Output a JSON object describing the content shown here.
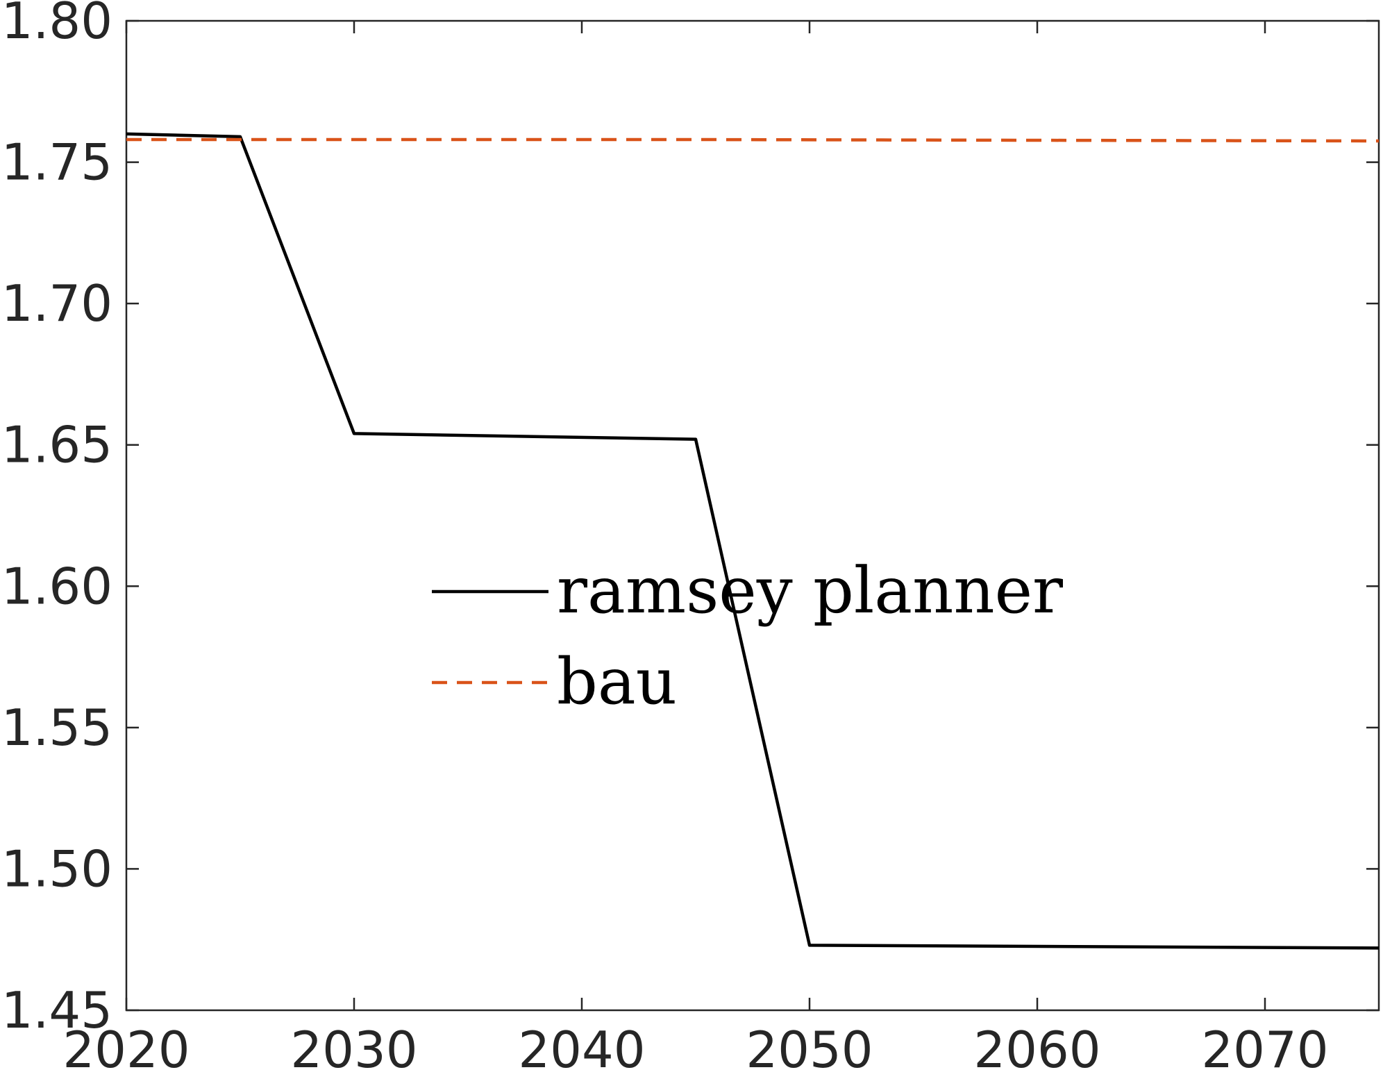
{
  "chart_data": {
    "type": "line",
    "title": "",
    "xlabel": "",
    "ylabel": "",
    "xlim": [
      2020,
      2075
    ],
    "ylim": [
      1.45,
      1.8
    ],
    "xticks": [
      "2020",
      "2030",
      "2040",
      "2050",
      "2060",
      "2070"
    ],
    "yticks": [
      "1.45",
      "1.50",
      "1.55",
      "1.60",
      "1.65",
      "1.70",
      "1.75",
      "1.80"
    ],
    "grid": false,
    "legend_position": "center",
    "series": [
      {
        "name": "ramsey planner",
        "color": "#000000",
        "style": "solid",
        "x": [
          2020,
          2025,
          2030,
          2045,
          2050,
          2075
        ],
        "y": [
          1.76,
          1.759,
          1.654,
          1.652,
          1.473,
          1.472
        ]
      },
      {
        "name": "bau",
        "color": "#D95319",
        "style": "dashed",
        "x": [
          2020,
          2045,
          2075
        ],
        "y": [
          1.758,
          1.758,
          1.7575
        ]
      }
    ]
  }
}
